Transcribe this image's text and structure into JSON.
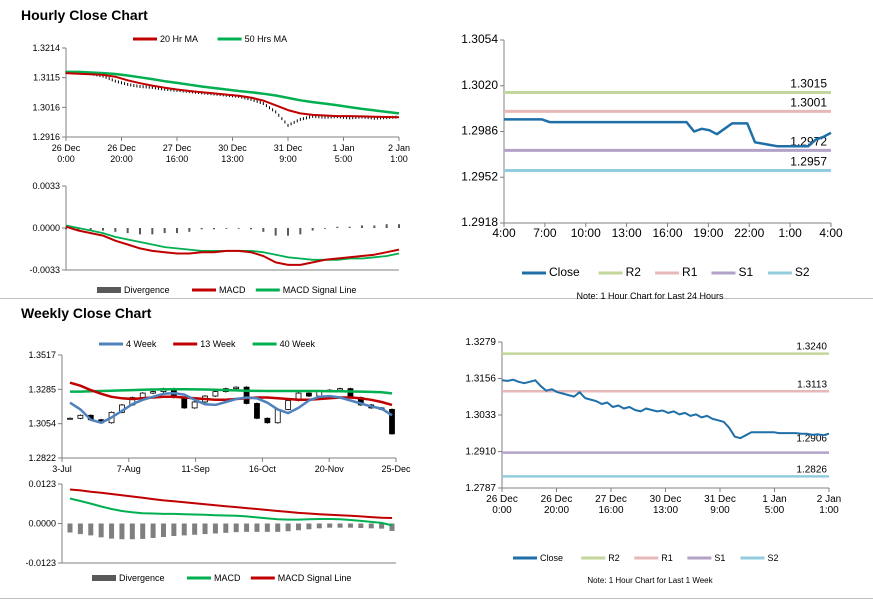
{
  "titles": {
    "hourly": "Hourly Close Chart",
    "weekly": "Weekly Close Chart"
  },
  "colors": {
    "red": "#c00000",
    "green": "#00b050",
    "blue": "#4f81bd",
    "close": "#1f6fa8",
    "r2": "#c3d69b",
    "r1": "#e6b9b8",
    "s1": "#b3a2c7",
    "s2": "#93cddd",
    "bar": "#595959",
    "axis": "#808080"
  },
  "chart_data": [
    {
      "id": "hourly-price",
      "type": "candlestick-line",
      "legend": [
        "20 Hr MA",
        "50 Hrs MA"
      ],
      "yticks": [
        "1.3214",
        "1.3115",
        "1.3016",
        "1.2916"
      ],
      "ylim": [
        1.2916,
        1.3214
      ],
      "xticks": [
        [
          "26 Dec",
          "0:00"
        ],
        [
          "26 Dec",
          "20:00"
        ],
        [
          "27 Dec",
          "16:00"
        ],
        [
          "30 Dec",
          "13:00"
        ],
        [
          "31 Dec",
          "9:00"
        ],
        [
          "1 Jan",
          "5:00"
        ],
        [
          "2 Jan",
          "1:00"
        ]
      ],
      "series": [
        {
          "name": "20 Hr MA",
          "values": [
            1.313,
            1.3128,
            1.3126,
            1.3124,
            1.3118,
            1.3106,
            1.3096,
            1.3088,
            1.3081,
            1.3075,
            1.307,
            1.3066,
            1.3062,
            1.3058,
            1.3054,
            1.3048,
            1.3038,
            1.3022,
            1.3006,
            1.2995,
            1.299,
            1.2988,
            1.2986,
            1.2986,
            1.2985,
            1.2984,
            1.2983,
            1.2982
          ]
        },
        {
          "name": "50 Hrs MA",
          "values": [
            1.3134,
            1.3134,
            1.3132,
            1.313,
            1.3127,
            1.3122,
            1.3116,
            1.311,
            1.3103,
            1.3097,
            1.3091,
            1.3085,
            1.308,
            1.3075,
            1.307,
            1.3066,
            1.3061,
            1.3055,
            1.3047,
            1.3039,
            1.3033,
            1.3028,
            1.3022,
            1.3016,
            1.301,
            1.3005,
            1.3,
            1.2995
          ]
        },
        {
          "name": "Close",
          "values": [
            1.3132,
            1.3131,
            1.3128,
            1.312,
            1.3103,
            1.3092,
            1.3085,
            1.3082,
            1.3076,
            1.3072,
            1.3068,
            1.3064,
            1.306,
            1.3056,
            1.3052,
            1.3042,
            1.3028,
            1.3,
            1.2955,
            1.2975,
            1.2985,
            1.2982,
            1.2984,
            1.298,
            1.2983,
            1.2979,
            1.2981,
            1.2983
          ]
        }
      ]
    },
    {
      "id": "hourly-macd",
      "type": "bar-line",
      "legend": [
        "Divergence",
        "MACD",
        "MACD Signal Line"
      ],
      "yticks": [
        "0.0033",
        "0.0000",
        "-0.0033"
      ],
      "ylim": [
        -0.0033,
        0.0033
      ],
      "series": [
        {
          "name": "MACD",
          "values": [
            0.0001,
            -0.0002,
            -0.0004,
            -0.0006,
            -0.001,
            -0.0013,
            -0.0016,
            -0.0018,
            -0.0019,
            -0.002,
            -0.002,
            -0.0019,
            -0.0019,
            -0.0018,
            -0.0018,
            -0.0019,
            -0.0022,
            -0.0027,
            -0.0029,
            -0.0029,
            -0.0027,
            -0.0025,
            -0.0024,
            -0.0023,
            -0.0022,
            -0.0021,
            -0.0019,
            -0.0017
          ]
        },
        {
          "name": "MACD Signal Line",
          "values": [
            0.0002,
            0.0,
            -0.0002,
            -0.0004,
            -0.0007,
            -0.0009,
            -0.0011,
            -0.0013,
            -0.0015,
            -0.0016,
            -0.0017,
            -0.0018,
            -0.0018,
            -0.0018,
            -0.0018,
            -0.0018,
            -0.0019,
            -0.0021,
            -0.0023,
            -0.0024,
            -0.0025,
            -0.0025,
            -0.0025,
            -0.0024,
            -0.0024,
            -0.0023,
            -0.0022,
            -0.002
          ]
        },
        {
          "name": "Divergence",
          "values": [
            -0.0001,
            -0.0002,
            -0.0002,
            -0.0002,
            -0.0003,
            -0.0004,
            -0.0005,
            -0.0005,
            -0.0004,
            -0.0004,
            -0.0003,
            -0.0001,
            -0.0001,
            0.0,
            0.0,
            -0.0001,
            -0.0003,
            -0.0006,
            -0.0006,
            -0.0005,
            -0.0002,
            0.0,
            0.0001,
            0.0001,
            0.0002,
            0.0002,
            0.0003,
            0.0003
          ]
        }
      ]
    },
    {
      "id": "hourly-levels",
      "type": "line",
      "yticks": [
        "1.3054",
        "1.3020",
        "1.2986",
        "1.2952",
        "1.2918"
      ],
      "ylim": [
        1.2918,
        1.3054
      ],
      "xticks": [
        "4:00",
        "7:00",
        "10:00",
        "13:00",
        "16:00",
        "19:00",
        "22:00",
        "1:00",
        "4:00"
      ],
      "legend": [
        "Close",
        "R2",
        "R1",
        "S1",
        "S2"
      ],
      "note": "Note: 1 Hour Chart for Last 24 Hours",
      "levels": [
        {
          "name": "R2",
          "value": 1.3015,
          "label": "1.3015"
        },
        {
          "name": "R1",
          "value": 1.3001,
          "label": "1.3001"
        },
        {
          "name": "S1",
          "value": 1.2972,
          "label": "1.2972"
        },
        {
          "name": "S2",
          "value": 1.2957,
          "label": "1.2957"
        }
      ],
      "close": [
        1.2995,
        1.2995,
        1.2995,
        1.2995,
        1.2995,
        1.2995,
        1.2993,
        1.2993,
        1.2993,
        1.2993,
        1.2993,
        1.2993,
        1.2993,
        1.2993,
        1.2993,
        1.2993,
        1.2993,
        1.2993,
        1.2993,
        1.2993,
        1.2993,
        1.2993,
        1.2993,
        1.2993,
        1.2993,
        1.2986,
        1.2988,
        1.2987,
        1.2984,
        1.2988,
        1.2992,
        1.2992,
        1.2992,
        1.2978,
        1.2977,
        1.2976,
        1.2975,
        1.2975,
        1.2975,
        1.2975,
        1.2975,
        1.298,
        1.2982,
        1.2985
      ]
    },
    {
      "id": "weekly-price",
      "type": "candlestick-line",
      "legend": [
        "4 Week",
        "13 Week",
        "40 Week"
      ],
      "yticks": [
        "1.3517",
        "1.3285",
        "1.3054",
        "1.2822"
      ],
      "ylim": [
        1.2822,
        1.3517
      ],
      "xticks": [
        "3-Jul",
        "7-Aug",
        "11-Sep",
        "16-Oct",
        "20-Nov",
        "25-Dec"
      ],
      "series": [
        {
          "name": "4 Week",
          "values": [
            1.3195,
            1.315,
            1.308,
            1.306,
            1.3095,
            1.314,
            1.3185,
            1.3215,
            1.3235,
            1.3255,
            1.326,
            1.325,
            1.3215,
            1.3185,
            1.318,
            1.32,
            1.322,
            1.323,
            1.3225,
            1.3195,
            1.315,
            1.3125,
            1.316,
            1.321,
            1.3235,
            1.324,
            1.323,
            1.321,
            1.319,
            1.317,
            1.3155,
            1.311
          ]
        },
        {
          "name": "13 Week",
          "values": [
            1.333,
            1.331,
            1.328,
            1.3255,
            1.3235,
            1.3225,
            1.322,
            1.3225,
            1.323,
            1.3235,
            1.3235,
            1.323,
            1.3225,
            1.322,
            1.3215,
            1.3215,
            1.322,
            1.3225,
            1.323,
            1.323,
            1.3225,
            1.322,
            1.3215,
            1.3215,
            1.322,
            1.3225,
            1.323,
            1.323,
            1.3225,
            1.3215,
            1.32,
            1.318
          ]
        },
        {
          "name": "40 Week",
          "values": [
            1.327,
            1.327,
            1.3272,
            1.3274,
            1.3276,
            1.3278,
            1.328,
            1.3282,
            1.3284,
            1.3285,
            1.3286,
            1.3286,
            1.3285,
            1.3284,
            1.3282,
            1.328,
            1.3278,
            1.3276,
            1.3275,
            1.3274,
            1.3274,
            1.3274,
            1.3274,
            1.3274,
            1.3274,
            1.3273,
            1.3272,
            1.3271,
            1.327,
            1.3268,
            1.3265,
            1.3258
          ]
        },
        {
          "name": "Close",
          "values": [
            1.309,
            1.311,
            1.308,
            1.306,
            1.313,
            1.318,
            1.323,
            1.326,
            1.327,
            1.329,
            1.323,
            1.316,
            1.32,
            1.324,
            1.327,
            1.329,
            1.33,
            1.319,
            1.309,
            1.306,
            1.315,
            1.321,
            1.326,
            1.324,
            1.327,
            1.328,
            1.329,
            1.323,
            1.318,
            1.316,
            1.315,
            1.2985
          ]
        }
      ]
    },
    {
      "id": "weekly-macd",
      "type": "bar-line",
      "legend": [
        "Divergence",
        "MACD",
        "MACD Signal Line"
      ],
      "yticks": [
        "0.0123",
        "0.0000",
        "-0.0123"
      ],
      "ylim": [
        -0.0123,
        0.0123
      ],
      "series": [
        {
          "name": "MACD",
          "values": [
            0.0078,
            0.007,
            0.0062,
            0.0053,
            0.0045,
            0.0039,
            0.0035,
            0.0032,
            0.0031,
            0.003,
            0.003,
            0.0029,
            0.0028,
            0.0027,
            0.0026,
            0.0025,
            0.0024,
            0.0022,
            0.0019,
            0.0016,
            0.0013,
            0.0012,
            0.0012,
            0.0013,
            0.0014,
            0.0014,
            0.0013,
            0.0011,
            0.0008,
            0.0005,
            0.0002,
            -0.0006
          ]
        },
        {
          "name": "MACD Signal Line",
          "values": [
            0.0106,
            0.0103,
            0.0099,
            0.0096,
            0.0092,
            0.0088,
            0.0084,
            0.008,
            0.0076,
            0.0072,
            0.0069,
            0.0066,
            0.0063,
            0.006,
            0.0057,
            0.0054,
            0.0051,
            0.0048,
            0.0045,
            0.0042,
            0.0039,
            0.0036,
            0.0033,
            0.0031,
            0.0029,
            0.0027,
            0.0026,
            0.0024,
            0.0022,
            0.002,
            0.0018,
            0.0017
          ]
        },
        {
          "name": "Divergence",
          "values": [
            -0.0028,
            -0.0033,
            -0.0037,
            -0.0043,
            -0.0047,
            -0.0049,
            -0.0049,
            -0.0048,
            -0.0045,
            -0.0042,
            -0.0039,
            -0.0037,
            -0.0035,
            -0.0033,
            -0.0031,
            -0.0029,
            -0.0027,
            -0.0026,
            -0.0026,
            -0.0026,
            -0.0026,
            -0.0024,
            -0.0021,
            -0.0018,
            -0.0015,
            -0.0013,
            -0.0013,
            -0.0013,
            -0.0014,
            -0.0015,
            -0.0016,
            -0.0023
          ]
        }
      ]
    },
    {
      "id": "weekly-levels",
      "type": "line",
      "yticks": [
        "1.3279",
        "1.3156",
        "1.3033",
        "1.2910",
        "1.2787"
      ],
      "ylim": [
        1.2787,
        1.3279
      ],
      "xticks": [
        [
          "26 Dec",
          "0:00"
        ],
        [
          "26 Dec",
          "20:00"
        ],
        [
          "27 Dec",
          "16:00"
        ],
        [
          "30 Dec",
          "13:00"
        ],
        [
          "31 Dec",
          "9:00"
        ],
        [
          "1 Jan",
          "5:00"
        ],
        [
          "2 Jan",
          "1:00"
        ]
      ],
      "legend": [
        "Close",
        "R2",
        "R1",
        "S1",
        "S2"
      ],
      "note": "Note: 1 Hour Chart for Last 1 Week",
      "levels": [
        {
          "name": "R2",
          "value": 1.324,
          "label": "1.3240"
        },
        {
          "name": "R1",
          "value": 1.3113,
          "label": "1.3113"
        },
        {
          "name": "S1",
          "value": 1.2906,
          "label": "1.2906"
        },
        {
          "name": "S2",
          "value": 1.2826,
          "label": "1.2826"
        }
      ],
      "close": [
        1.315,
        1.3148,
        1.3152,
        1.3145,
        1.314,
        1.3145,
        1.315,
        1.313,
        1.3115,
        1.312,
        1.311,
        1.3105,
        1.31,
        1.3095,
        1.311,
        1.309,
        1.3085,
        1.308,
        1.307,
        1.3075,
        1.306,
        1.3065,
        1.3055,
        1.306,
        1.305,
        1.3045,
        1.3055,
        1.305,
        1.3045,
        1.3048,
        1.304,
        1.3045,
        1.3035,
        1.304,
        1.303,
        1.3035,
        1.3025,
        1.303,
        1.302,
        1.3015,
        1.301,
        1.299,
        1.296,
        1.2955,
        1.2965,
        1.2975,
        1.2975,
        1.2975,
        1.2975,
        1.2975,
        1.2972,
        1.2972,
        1.2972,
        1.2972,
        1.297,
        1.297,
        1.2966,
        1.2968,
        1.2965,
        1.297
      ]
    }
  ]
}
